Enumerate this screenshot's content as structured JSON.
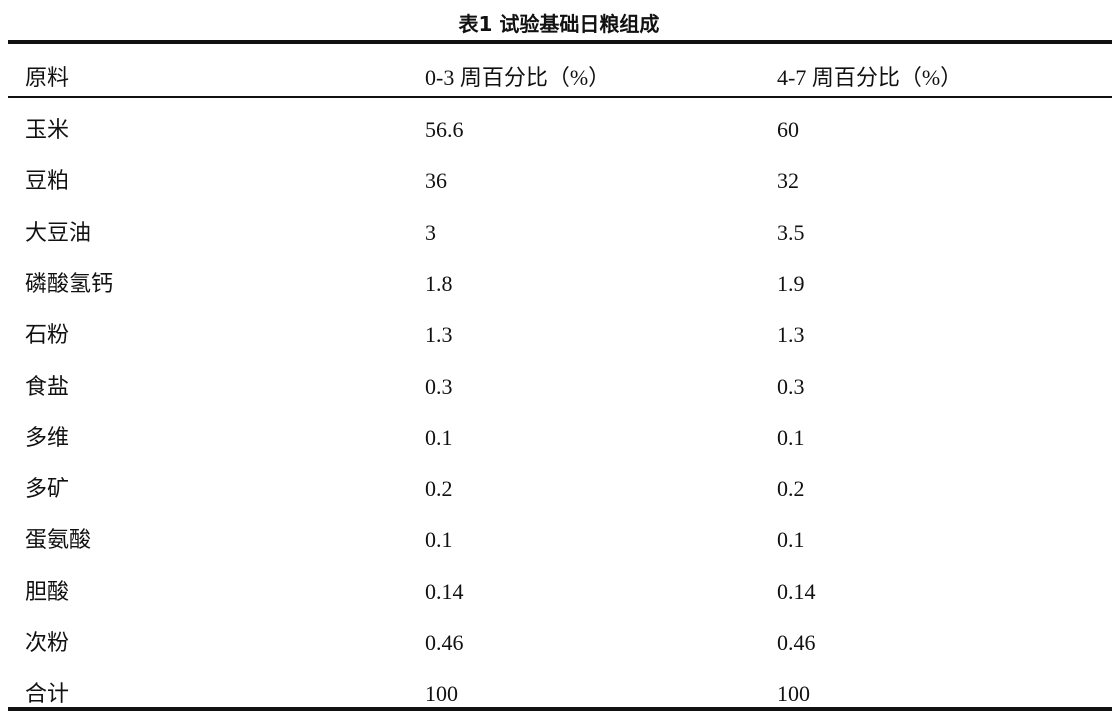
{
  "title": "表1 试验基础日粮组成",
  "table": {
    "header": [
      "原料",
      "0-3 周百分比（%）",
      "4-7 周百分比（%）"
    ],
    "rows": [
      [
        "玉米",
        "56.6",
        "60"
      ],
      [
        "豆粕",
        "36",
        "32"
      ],
      [
        "大豆油",
        "3",
        "3.5"
      ],
      [
        "磷酸氢钙",
        "1.8",
        "1.9"
      ],
      [
        "石粉",
        "1.3",
        "1.3"
      ],
      [
        "食盐",
        "0.3",
        "0.3"
      ],
      [
        "多维",
        "0.1",
        "0.1"
      ],
      [
        "多矿",
        "0.2",
        "0.2"
      ],
      [
        "蛋氨酸",
        "0.1",
        "0.1"
      ],
      [
        "胆酸",
        "0.14",
        "0.14"
      ],
      [
        "次粉",
        "0.46",
        "0.46"
      ],
      [
        "合计",
        "100",
        "100"
      ]
    ]
  }
}
